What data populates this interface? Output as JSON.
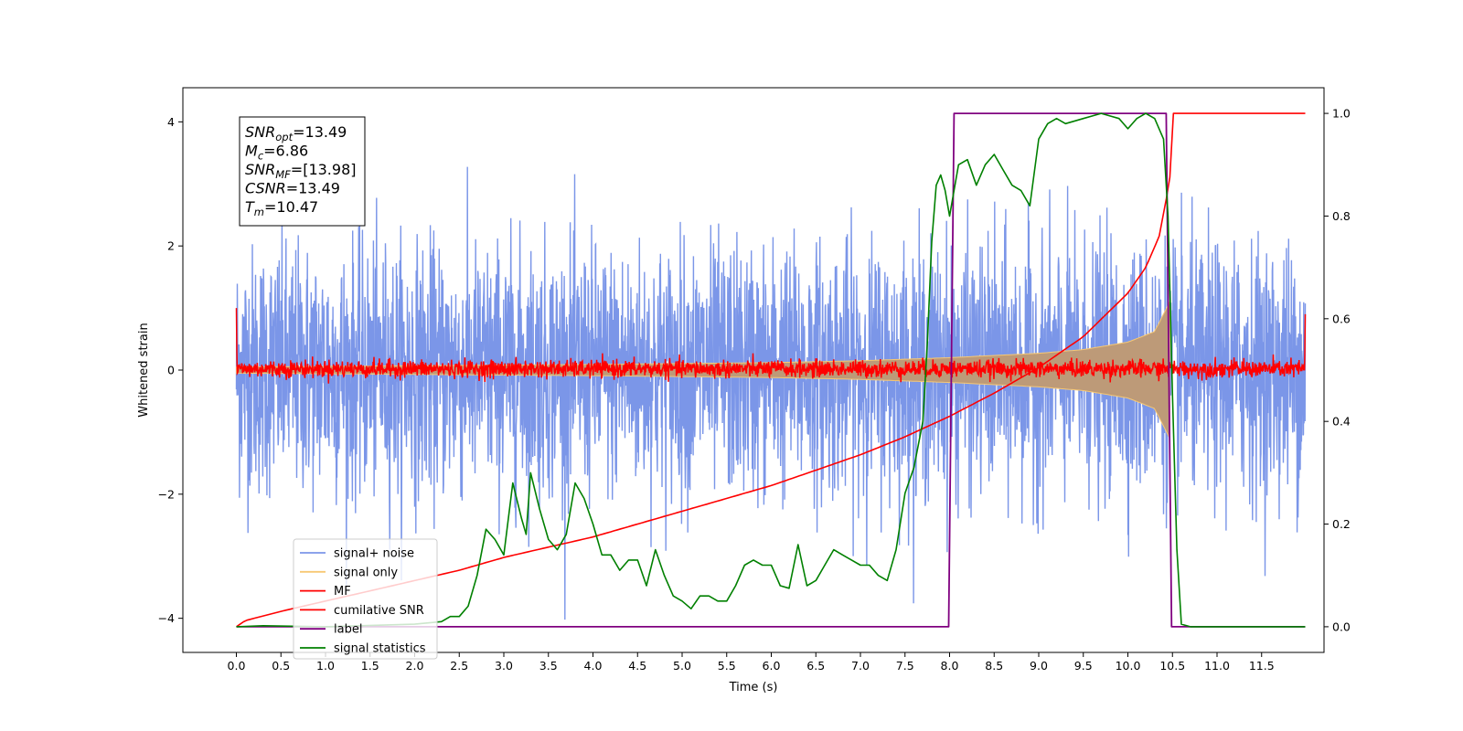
{
  "chart_data": {
    "type": "line",
    "xlabel": "Time (s)",
    "ylabel": "Whitened strain",
    "xlim": [
      -0.6,
      12.2
    ],
    "ylim": [
      -4.55,
      4.55
    ],
    "ylim_right": [
      -0.05,
      1.05
    ],
    "x_ticks": [
      0.0,
      0.5,
      1.0,
      1.5,
      2.0,
      2.5,
      3.0,
      3.5,
      4.0,
      4.5,
      5.0,
      5.5,
      6.0,
      6.5,
      7.0,
      7.5,
      8.0,
      8.5,
      9.0,
      9.5,
      10.0,
      10.5,
      11.0,
      11.5
    ],
    "x_tick_labels": [
      "0.0",
      "0.5",
      "1.0",
      "1.5",
      "2.0",
      "2.5",
      "3.0",
      "3.5",
      "4.0",
      "4.5",
      "5.0",
      "5.5",
      "6.0",
      "6.5",
      "7.0",
      "7.5",
      "8.0",
      "8.5",
      "9.0",
      "9.5",
      "10.0",
      "10.5",
      "11.0",
      "11.5"
    ],
    "y_ticks_left": [
      -4,
      -2,
      0,
      2,
      4
    ],
    "y_tick_labels_left": [
      "−4",
      "−2",
      "0",
      "2",
      "4"
    ],
    "y_ticks_right": [
      0.0,
      0.2,
      0.4,
      0.6,
      0.8,
      1.0
    ],
    "y_tick_labels_right": [
      "0.0",
      "0.2",
      "0.4",
      "0.6",
      "0.8",
      "1.0"
    ],
    "grid": false,
    "legend_position": "lower-left",
    "annotation": {
      "lines": [
        {
          "sym": "SNR",
          "sub": "opt",
          "value": "=13.49"
        },
        {
          "sym": "M",
          "sub": "c",
          "value": "=6.86"
        },
        {
          "sym": "SNR",
          "sub": "MF",
          "value": "=[13.98]"
        },
        {
          "sym": "CSNR",
          "sub": "",
          "value": "=13.49"
        },
        {
          "sym": "T",
          "sub": "m",
          "value": "=10.47"
        }
      ]
    },
    "series": [
      {
        "name": "signal+ noise",
        "color": "#7b96e8",
        "axis": "left",
        "kind": "noisy",
        "x_range": [
          0.0,
          11.99
        ],
        "noise_std": 1.0,
        "amplitude_range": [
          -4.1,
          3.9
        ]
      },
      {
        "name": "signal only",
        "color": "#f7c873",
        "axis": "left",
        "kind": "chirp-envelope",
        "x_range": [
          0.0,
          10.47
        ],
        "envelope": {
          "x": [
            0.0,
            2.0,
            4.0,
            6.0,
            7.0,
            8.0,
            9.0,
            9.5,
            10.0,
            10.3,
            10.47
          ],
          "amp": [
            0.05,
            0.07,
            0.09,
            0.12,
            0.15,
            0.2,
            0.27,
            0.33,
            0.45,
            0.62,
            1.1
          ]
        }
      },
      {
        "name": "MF",
        "color": "#ff0000",
        "axis": "left",
        "kind": "noisy",
        "x_range": [
          0.0,
          11.99
        ],
        "mean": 0.02,
        "noise_std": 0.07,
        "edge_values": [
          1.0,
          0.9
        ]
      },
      {
        "name": "cumilative SNR",
        "color": "#ff0000",
        "axis": "right",
        "x": [
          0.0,
          0.1,
          0.5,
          1.0,
          1.5,
          2.0,
          2.5,
          3.0,
          3.5,
          4.0,
          4.5,
          5.0,
          5.5,
          6.0,
          6.5,
          7.0,
          7.5,
          8.0,
          8.5,
          9.0,
          9.5,
          10.0,
          10.2,
          10.35,
          10.47,
          10.5,
          11.5,
          11.99
        ],
        "y": [
          0.0,
          0.012,
          0.03,
          0.05,
          0.07,
          0.09,
          0.11,
          0.135,
          0.155,
          0.175,
          0.2,
          0.225,
          0.25,
          0.275,
          0.305,
          0.335,
          0.37,
          0.41,
          0.455,
          0.505,
          0.565,
          0.65,
          0.7,
          0.76,
          0.87,
          1.0,
          1.0,
          1.0
        ]
      },
      {
        "name": "label",
        "color": "#800080",
        "axis": "right",
        "x": [
          0.0,
          7.99,
          8.05,
          10.43,
          10.49,
          11.99
        ],
        "y": [
          0.0,
          0.0,
          1.0,
          1.0,
          0.0,
          0.0
        ]
      },
      {
        "name": "signal statistics",
        "color": "#008000",
        "axis": "right",
        "x": [
          0.0,
          0.3,
          1.0,
          2.0,
          2.3,
          2.4,
          2.5,
          2.6,
          2.7,
          2.8,
          2.9,
          3.0,
          3.1,
          3.2,
          3.25,
          3.3,
          3.4,
          3.5,
          3.6,
          3.7,
          3.8,
          3.9,
          4.0,
          4.1,
          4.2,
          4.3,
          4.4,
          4.5,
          4.6,
          4.7,
          4.8,
          4.9,
          5.0,
          5.1,
          5.2,
          5.3,
          5.4,
          5.5,
          5.6,
          5.7,
          5.8,
          5.9,
          6.0,
          6.1,
          6.2,
          6.3,
          6.4,
          6.5,
          6.6,
          6.7,
          6.8,
          6.9,
          7.0,
          7.1,
          7.2,
          7.3,
          7.4,
          7.5,
          7.6,
          7.7,
          7.75,
          7.8,
          7.85,
          7.9,
          7.95,
          8.0,
          8.1,
          8.2,
          8.3,
          8.4,
          8.5,
          8.6,
          8.7,
          8.8,
          8.9,
          9.0,
          9.1,
          9.2,
          9.3,
          9.5,
          9.7,
          9.9,
          10.0,
          10.1,
          10.2,
          10.3,
          10.4,
          10.45,
          10.5,
          10.55,
          10.6,
          10.7,
          11.0,
          11.99
        ],
        "y": [
          0.0,
          0.002,
          0.0,
          0.005,
          0.01,
          0.02,
          0.02,
          0.04,
          0.1,
          0.19,
          0.17,
          0.14,
          0.28,
          0.21,
          0.18,
          0.3,
          0.23,
          0.17,
          0.15,
          0.18,
          0.28,
          0.25,
          0.2,
          0.14,
          0.14,
          0.11,
          0.13,
          0.13,
          0.08,
          0.15,
          0.1,
          0.06,
          0.05,
          0.035,
          0.06,
          0.06,
          0.05,
          0.05,
          0.08,
          0.12,
          0.13,
          0.12,
          0.12,
          0.08,
          0.075,
          0.16,
          0.08,
          0.09,
          0.12,
          0.15,
          0.14,
          0.13,
          0.12,
          0.12,
          0.1,
          0.09,
          0.15,
          0.26,
          0.31,
          0.4,
          0.55,
          0.75,
          0.86,
          0.88,
          0.85,
          0.8,
          0.9,
          0.91,
          0.86,
          0.9,
          0.92,
          0.89,
          0.86,
          0.85,
          0.82,
          0.95,
          0.98,
          0.99,
          0.98,
          0.99,
          1.0,
          0.99,
          0.97,
          0.99,
          1.0,
          0.99,
          0.95,
          0.8,
          0.45,
          0.15,
          0.005,
          0.0,
          0.0,
          0.0
        ]
      }
    ]
  }
}
